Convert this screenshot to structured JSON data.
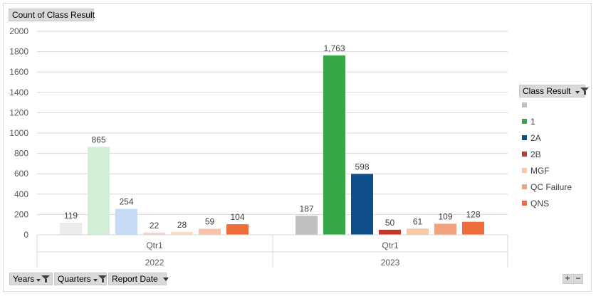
{
  "value_field_label": "Count of Class Result",
  "legend_field_label": "Class Result",
  "axis_field_buttons": [
    {
      "label": "Years",
      "has_filter": true
    },
    {
      "label": "Quarters",
      "has_filter": true
    },
    {
      "label": "Report Date",
      "has_filter": false
    }
  ],
  "zoom": {
    "plus": "+",
    "minus": "−"
  },
  "colors": {
    "blank": "#bfbfbf",
    "1": "#37a646",
    "2A": "#0e4f8a",
    "2B": "#c0392b",
    "MGF": "#f7c8a8",
    "QC Failure": "#f4a27e",
    "QNS": "#ee6c3b",
    "blank_faded": "#ececec",
    "1_faded": "#d2efd6",
    "2A_faded": "#c6dcf5",
    "2B_faded": "#f6d4d0",
    "MGF_faded": "#fbdccb",
    "QC Failure_faded": "#f8c2a8",
    "QNS_faded": "#ee6c3b"
  },
  "chart_data": {
    "type": "bar",
    "ylim": [
      0,
      2000
    ],
    "yticks": [
      "0",
      "200",
      "400",
      "600",
      "800",
      "1000",
      "1200",
      "1400",
      "1600",
      "1800",
      "2000"
    ],
    "grid": true,
    "legend_position": "right",
    "groups": [
      {
        "year": "2022",
        "quarter": "Qtr1"
      },
      {
        "year": "2023",
        "quarter": "Qtr1"
      }
    ],
    "series": [
      {
        "name": "",
        "values": [
          119,
          187
        ],
        "labels": [
          "119",
          "187"
        ]
      },
      {
        "name": "1",
        "values": [
          865,
          1763
        ],
        "labels": [
          "865",
          "1,763"
        ]
      },
      {
        "name": "2A",
        "values": [
          254,
          598
        ],
        "labels": [
          "254",
          "598"
        ]
      },
      {
        "name": "2B",
        "values": [
          22,
          50
        ],
        "labels": [
          "22",
          "50"
        ]
      },
      {
        "name": "MGF",
        "values": [
          28,
          61
        ],
        "labels": [
          "28",
          "61"
        ]
      },
      {
        "name": "QC Failure",
        "values": [
          59,
          109
        ],
        "labels": [
          "59",
          "109"
        ]
      },
      {
        "name": "QNS",
        "values": [
          104,
          128
        ],
        "labels": [
          "104",
          "128"
        ]
      }
    ]
  }
}
